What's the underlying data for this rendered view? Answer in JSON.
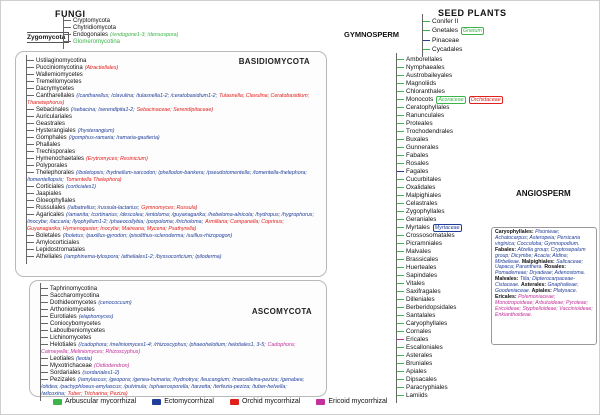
{
  "colors": {
    "arbuscular": "#3cb44a",
    "ecto": "#1f3d99",
    "orchid": "#e0201c",
    "ericoid": "#c2309b",
    "tree": "#666666"
  },
  "fungi": {
    "title": "FUNGI",
    "zygomycota_label": "Zygomycota",
    "basidiomycota_label": "BASIDIOMYCOTA",
    "ascomycota_label": "ASCOMYCOTA",
    "basal_taxa": [
      {
        "name": "Cryptomycota"
      },
      {
        "name": "Chytridiomycota"
      },
      {
        "name": "Endogonales",
        "ann": [
          {
            "t": "(/endogone1-3; /densospora)",
            "c": "arbuscular"
          }
        ]
      },
      {
        "name": "Glomeromycotina",
        "name_color": "arbuscular"
      }
    ],
    "basidiomycota_taxa": [
      {
        "name": "Ustilaginomycotina"
      },
      {
        "name": "Pucciniomycotina",
        "ann": [
          {
            "t": "(Atractiellales)",
            "c": "orchid"
          }
        ]
      },
      {
        "name": "Wallemiomycetes"
      },
      {
        "name": "Tremellomycetes"
      },
      {
        "name": "Dacrymycetes"
      },
      {
        "name": "Cantharellales",
        "ann": [
          {
            "t": "(/cantharellus; /clavulina; /tulasnella1-2; /ceratobasidium1-2;",
            "c": "ecto"
          },
          {
            "t": "Tulasnella; Clavulina; Ceratobasidium; Thanetephorus)",
            "c": "orchid"
          }
        ]
      },
      {
        "name": "Sebacinales",
        "ann": [
          {
            "t": "(/sebacina; /serendipita1-2;",
            "c": "ecto"
          },
          {
            "t": "Sebacinaceae; Serendipitaceae)",
            "c": "orchid"
          }
        ]
      },
      {
        "name": "Auriculariales"
      },
      {
        "name": "Geastrales"
      },
      {
        "name": "Hysterangiales",
        "ann": [
          {
            "t": "(/hysterangium)",
            "c": "ecto"
          }
        ]
      },
      {
        "name": "Gomphales",
        "ann": [
          {
            "t": "(/gomphus-ramaria; /ramaria-gautieria)",
            "c": "ecto"
          }
        ]
      },
      {
        "name": "Phallales"
      },
      {
        "name": "Trechisporales"
      },
      {
        "name": "Hymenochaetales",
        "ann": [
          {
            "t": "(Erytromyces; Resinicium)",
            "c": "orchid"
          }
        ]
      },
      {
        "name": "Polyporales"
      },
      {
        "name": "Thelephorales",
        "ann": [
          {
            "t": "(/boletopsis; /hydnellum-sarcodon; /phellodon-bankera; /pseudotomentella; /tomentella-thelephora; /tomentellopsis;",
            "c": "ecto"
          },
          {
            "t": "Tomentella Thelephora)",
            "c": "orchid"
          }
        ]
      },
      {
        "name": "Corticiales",
        "ann": [
          {
            "t": "(corticiales1)",
            "c": "ecto"
          }
        ]
      },
      {
        "name": "Jaapiales"
      },
      {
        "name": "Gloeophyllales"
      },
      {
        "name": "Russulales",
        "ann": [
          {
            "t": "(/albatrellus; /russula-lactarius;",
            "c": "ecto"
          },
          {
            "t": "Gymnomyces; Russula)",
            "c": "orchid"
          }
        ]
      },
      {
        "name": "Agaricales",
        "ann": [
          {
            "t": "(/amanita; /cortinarius; /descolea; /entoloma; /guyanagarika; /hebeloma-alnicola; /hydropus; /hygrophorus; /inocybe; /laccaria; /lyophyllum1-2; /phaeocollybia; /porpoloma; /tricholoma;",
            "c": "ecto"
          },
          {
            "t": "Armillaria; Campanella; Coprinus; Guyanagarika; Hymenogaster; Inocybe; Maireana; Mycena; Psathyrella)",
            "c": "orchid"
          }
        ]
      },
      {
        "name": "Boletales",
        "ann": [
          {
            "t": "(/boletus; /paxillus-gyrodon; /pisolithus-scleroderma; /suillus-rhizopogon)",
            "c": "ecto"
          }
        ]
      },
      {
        "name": "Amylocorticiales"
      },
      {
        "name": "Lepidostromatales"
      },
      {
        "name": "Atheliales",
        "ann": [
          {
            "t": "(/amphinema-tylospora; /atheliales1-2; /byssocorticium; /piloderma)",
            "c": "ecto"
          }
        ]
      }
    ],
    "ascomycota_taxa": [
      {
        "name": "Taphrinomycotina"
      },
      {
        "name": "Saccharomycotina"
      },
      {
        "name": "Dothideomycetes",
        "ann": [
          {
            "t": "(cenococcum)",
            "c": "ecto"
          }
        ]
      },
      {
        "name": "Arthoniomycetes"
      },
      {
        "name": "Eurotiales",
        "ann": [
          {
            "t": "(elaphomyces)",
            "c": "ecto"
          }
        ]
      },
      {
        "name": "Coniocybomycetes"
      },
      {
        "name": "Laboulbeniomycetes"
      },
      {
        "name": "Lichinomycetes"
      },
      {
        "name": "Helotiales",
        "ann": [
          {
            "t": "(/cadophora; /meliniomyces1-4; /rhizoscyphus; /phaeohelotium; helotiales1, 3-5;",
            "c": "ecto"
          },
          {
            "t": "Cadophora; Cairneyella; Meliniomyces; Rhizoscyphus)",
            "c": "ericoid"
          }
        ]
      },
      {
        "name": "Leotiales",
        "ann": [
          {
            "t": "(leotia)",
            "c": "ecto"
          }
        ]
      },
      {
        "name": "Myxotrichaceae",
        "ann": [
          {
            "t": "(Oidiodendron)",
            "c": "ericoid"
          }
        ]
      },
      {
        "name": "Sordariales",
        "ann": [
          {
            "t": "(sordariales1-2)",
            "c": "ecto"
          }
        ]
      },
      {
        "name": "Pezizales",
        "ann": [
          {
            "t": "(/amylascus; /geopora; /genea-humaria; /hydnotrya; /leucangium; /marcelleina-peziza; /genabea; /otidea; /pachyphloeus-amylascus; /pulvinula; /sphaerosporella; /tarzetta; /terfezia-peziza; /tuber-helvella; /wilcoxina;",
            "c": "ecto"
          },
          {
            "t": "Tuber; Tricharina; Peziza)",
            "c": "orchid"
          }
        ]
      }
    ]
  },
  "plants": {
    "title": "SEED PLANTS",
    "gymnosperm_label": "GYMNOSPERM",
    "angiosperm_label": "ANGIOSPERM",
    "gymnosperm_taxa": [
      {
        "name": "Conifer II",
        "tick": "arbuscular"
      },
      {
        "name": "Gnetales",
        "tick": "arbuscular",
        "ann": [
          {
            "t": "Gnetum",
            "c": "arbuscular",
            "box": true
          }
        ]
      },
      {
        "name": "Pinaceae",
        "tick": "ecto"
      },
      {
        "name": "Cycadales",
        "tick": "arbuscular"
      }
    ],
    "angiosperm_taxa": [
      {
        "name": "Amborellales",
        "tick": "arbuscular"
      },
      {
        "name": "Nymphaeales",
        "tick": "arbuscular"
      },
      {
        "name": "Austrobaileyales",
        "tick": "arbuscular"
      },
      {
        "name": "Magnoliids",
        "tick": "arbuscular"
      },
      {
        "name": "Chloranthales",
        "tick": "arbuscular"
      },
      {
        "name": "Monocots",
        "tick": "arbuscular",
        "ann": [
          {
            "t": "Acoraceae",
            "c": "arbuscular",
            "box": true
          },
          {
            "t": "Orchidaceae",
            "c": "orchid",
            "box": true
          }
        ]
      },
      {
        "name": "Ceratophyllales",
        "tick": "arbuscular"
      },
      {
        "name": "Ranunculales",
        "tick": "arbuscular"
      },
      {
        "name": "Proteales",
        "tick": "arbuscular"
      },
      {
        "name": "Trochodendrales",
        "tick": "arbuscular"
      },
      {
        "name": "Buxales",
        "tick": "arbuscular"
      },
      {
        "name": "Gunnerales",
        "tick": "arbuscular"
      },
      {
        "name": "Fabales",
        "tick": "arbuscular"
      },
      {
        "name": "Rosales",
        "tick": "arbuscular"
      },
      {
        "name": "Fagales",
        "tick": "ecto"
      },
      {
        "name": "Cucurbitales",
        "tick": "arbuscular"
      },
      {
        "name": "Oxalidales",
        "tick": "arbuscular"
      },
      {
        "name": "Malpighiales",
        "tick": "arbuscular"
      },
      {
        "name": "Celastrales",
        "tick": "arbuscular"
      },
      {
        "name": "Zygophyllales",
        "tick": "arbuscular"
      },
      {
        "name": "Geraniales",
        "tick": "arbuscular"
      },
      {
        "name": "Myrtales",
        "tick": "arbuscular",
        "ann": [
          {
            "t": "Myrtaceae",
            "c": "ecto",
            "box": true
          }
        ]
      },
      {
        "name": "Crossosomatales",
        "tick": "arbuscular"
      },
      {
        "name": "Picramniales",
        "tick": "arbuscular"
      },
      {
        "name": "Malvales",
        "tick": "arbuscular"
      },
      {
        "name": "Brassicales",
        "tick": "arbuscular"
      },
      {
        "name": "Huerteales",
        "tick": "arbuscular"
      },
      {
        "name": "Sapindales",
        "tick": "arbuscular"
      },
      {
        "name": "Vitales",
        "tick": "arbuscular"
      },
      {
        "name": "Saxifragales",
        "tick": "arbuscular"
      },
      {
        "name": "Dilleniales",
        "tick": "arbuscular"
      },
      {
        "name": "Berberidopsidales",
        "tick": "arbuscular"
      },
      {
        "name": "Santalales",
        "tick": "arbuscular"
      },
      {
        "name": "Caryophyllales",
        "tick": "arbuscular"
      },
      {
        "name": "Cornales",
        "tick": "arbuscular"
      },
      {
        "name": "Ericales",
        "tick": "ericoid"
      },
      {
        "name": "Escalloniales",
        "tick": "arbuscular"
      },
      {
        "name": "Asterales",
        "tick": "arbuscular"
      },
      {
        "name": "Bruniales",
        "tick": "arbuscular"
      },
      {
        "name": "Apiales",
        "tick": "arbuscular"
      },
      {
        "name": "Dipsacales",
        "tick": "arbuscular"
      },
      {
        "name": "Paracryphiales",
        "tick": "arbuscular"
      },
      {
        "name": "Lamiids",
        "tick": "arbuscular"
      }
    ]
  },
  "callout": {
    "entries": [
      {
        "order": "Caryophyllales",
        "taxa": "Pisonieae; Achatocarpus; Asteropeia; Persicaria virginica; Coccoloba; Gymnopodium.",
        "c": "ecto"
      },
      {
        "order": "Fabales",
        "taxa": "Afzelia group; Cryptosepalum group; Dicymbe; Acacia; Aldina; Mirbelieae.",
        "c": "ecto"
      },
      {
        "order": "Malpighiales",
        "taxa": "Salicaceae; Uapaca; Paranthera.",
        "c": "ecto"
      },
      {
        "order": "Rosales",
        "taxa": "Pomaderreae; Dryadeae; Adenostoma.",
        "c": "ecto"
      },
      {
        "order": "Malvales",
        "taxa": "Tilia; Dipterocarpaceae-Cistaceae.",
        "c": "ecto"
      },
      {
        "order": "Asterales",
        "taxa": "Gnaphalieae; Goodeniaceae.",
        "c": "ecto"
      },
      {
        "order": "Apiales",
        "taxa": "Platysace.",
        "c": "ecto"
      },
      {
        "order": "Ericales",
        "taxa": "Polemoniaceae; Monotropoideae; Arbutoideae; Pyroleae; Ericoideae; Styphelioideae; Vaccinioideae; Enkianthoideae.",
        "c": "ericoid"
      }
    ]
  },
  "legend": {
    "items": [
      {
        "label": "Arbuscular mycorrhizal",
        "c": "arbuscular"
      },
      {
        "label": "Ectomycorrhizal",
        "c": "ecto"
      },
      {
        "label": "Orchid mycorrhizal",
        "c": "orchid"
      },
      {
        "label": "Ericoid mycorrhizal",
        "c": "ericoid"
      }
    ]
  }
}
